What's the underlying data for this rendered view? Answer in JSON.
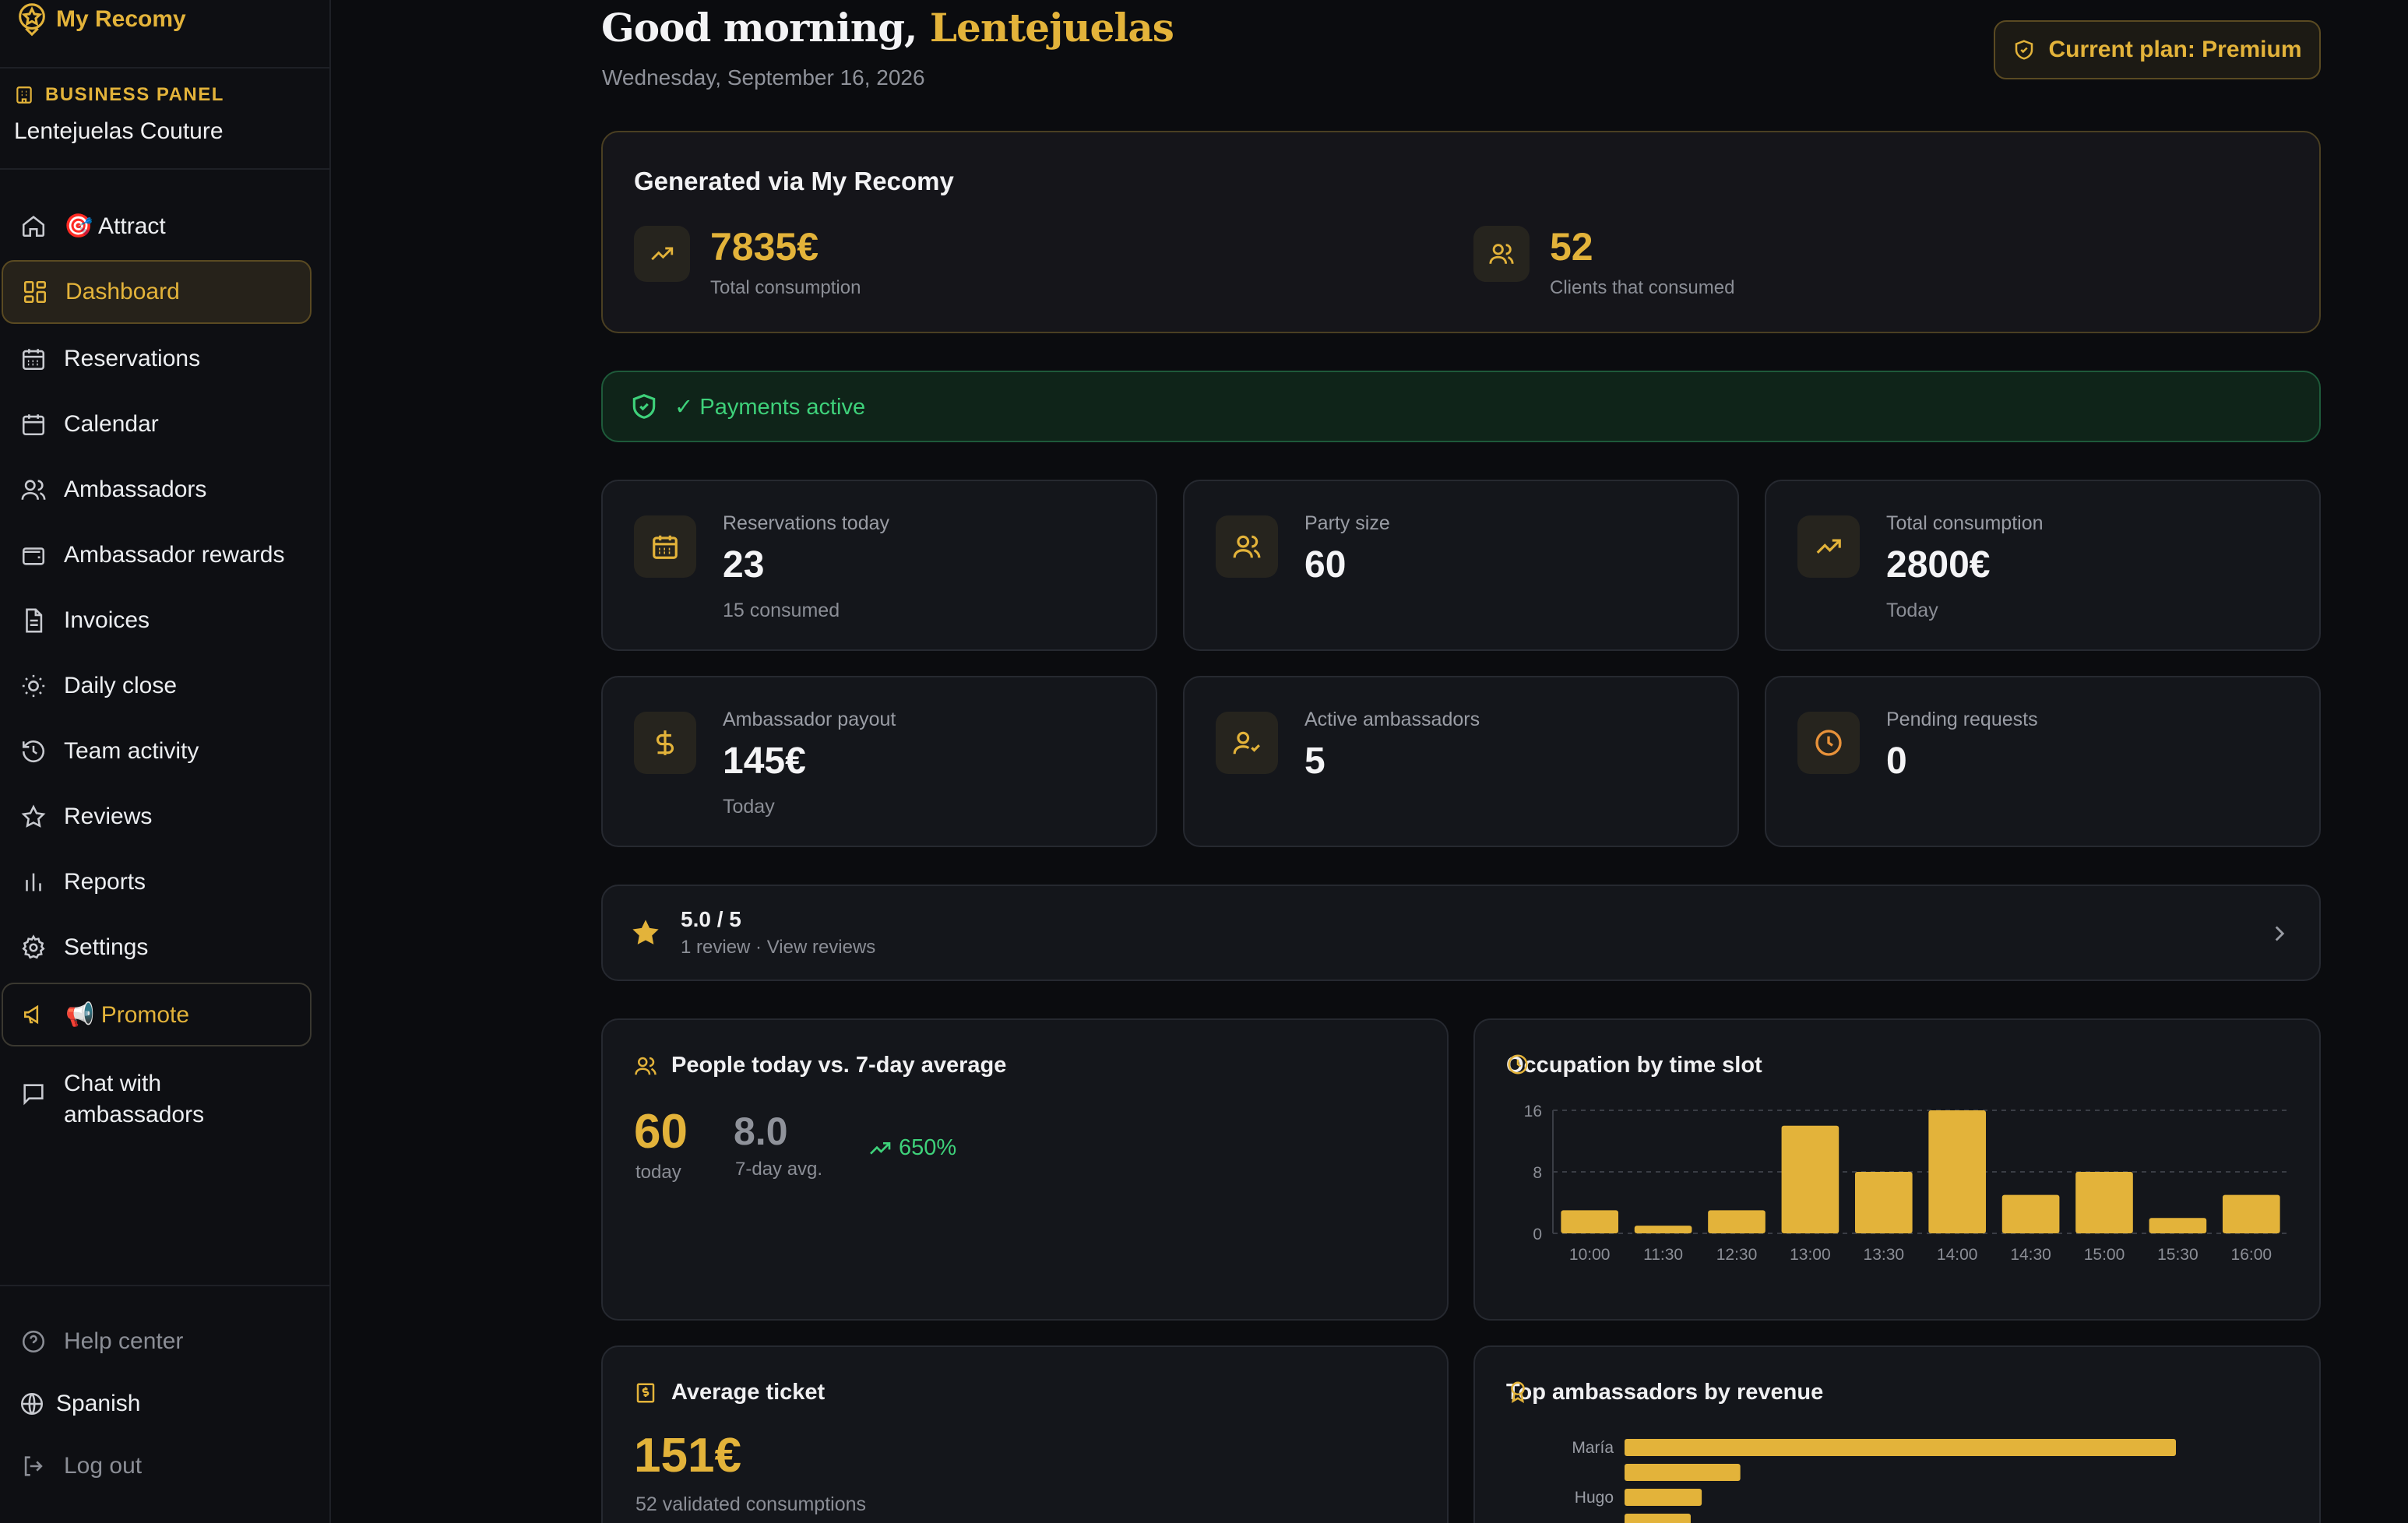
{
  "app": {
    "logo_text": "My Recomy"
  },
  "sidebar": {
    "business_label": "BUSINESS PANEL",
    "business_name": "Lentejuelas Couture",
    "items": [
      {
        "label": "🎯 Attract",
        "icon": "home-icon"
      },
      {
        "label": "Dashboard",
        "icon": "dashboard-icon"
      },
      {
        "label": "Reservations",
        "icon": "calendar-grid-icon"
      },
      {
        "label": "Calendar",
        "icon": "calendar-icon"
      },
      {
        "label": "Ambassadors",
        "icon": "users-icon"
      },
      {
        "label": "Ambassador rewards",
        "icon": "wallet-icon"
      },
      {
        "label": "Invoices",
        "icon": "document-icon"
      },
      {
        "label": "Daily close",
        "icon": "sun-icon"
      },
      {
        "label": "Team activity",
        "icon": "history-icon"
      },
      {
        "label": "Reviews",
        "icon": "star-icon"
      },
      {
        "label": "Reports",
        "icon": "bar-chart-icon"
      },
      {
        "label": "Settings",
        "icon": "gear-icon"
      },
      {
        "label": "📢 Promote",
        "icon": "megaphone-icon"
      },
      {
        "label": "Chat with ambassadors",
        "icon": "chat-icon"
      }
    ],
    "footer": {
      "help": "Help center",
      "language": "Spanish",
      "logout": "Log out"
    }
  },
  "header": {
    "greeting": "Good morning,",
    "name": "Lentejuelas",
    "date": "Wednesday, September 16, 2026",
    "plan": "Current plan: Premium"
  },
  "generated": {
    "title": "Generated via My Recomy",
    "consumption_value": "7835€",
    "consumption_label": "Total consumption",
    "clients_value": "52",
    "clients_label": "Clients that consumed"
  },
  "payments": {
    "label": "✓ Payments active"
  },
  "stats": [
    {
      "label": "Reservations today",
      "value": "23",
      "note": "15 consumed",
      "icon": "calendar-grid-icon"
    },
    {
      "label": "Party size",
      "value": "60",
      "note": "",
      "icon": "users-icon"
    },
    {
      "label": "Total consumption",
      "value": "2800€",
      "note": "Today",
      "icon": "trending-up-icon"
    },
    {
      "label": "Ambassador payout",
      "value": "145€",
      "note": "Today",
      "icon": "dollar-icon"
    },
    {
      "label": "Active ambassadors",
      "value": "5",
      "note": "",
      "icon": "user-check-icon"
    },
    {
      "label": "Pending requests",
      "value": "0",
      "note": "",
      "icon": "clock-icon"
    }
  ],
  "reviews": {
    "score": "5.0 / 5",
    "sub": "1 review · View reviews"
  },
  "people": {
    "title": "People today vs. 7-day average",
    "today": "60",
    "today_label": "today",
    "avg": "8.0",
    "avg_label": "7-day avg.",
    "trend": "650%"
  },
  "occupation": {
    "title": "Occupation by time slot"
  },
  "ticket": {
    "title": "Average ticket",
    "value": "151€",
    "sub": "52 validated consumptions"
  },
  "top_ambassadors": {
    "title": "Top ambassadors by revenue"
  },
  "colors": {
    "accent": "#e3b33a",
    "success": "#3ed17a",
    "background": "#0b0c0f",
    "card": "#14161b"
  },
  "chart_data": [
    {
      "type": "bar",
      "title": "Occupation by time slot",
      "categories": [
        "10:00",
        "11:30",
        "12:30",
        "13:00",
        "13:30",
        "14:00",
        "14:30",
        "15:00",
        "15:30",
        "16:00"
      ],
      "values": [
        3,
        1,
        3,
        14,
        8,
        16,
        5,
        8,
        2,
        5
      ],
      "yticks": [
        0,
        8,
        16
      ],
      "ylim": [
        0,
        16
      ],
      "grid": true
    },
    {
      "type": "bar",
      "orientation": "horizontal",
      "title": "Top ambassadors by revenue",
      "categories": [
        "María",
        "",
        "Hugo",
        ""
      ],
      "values": [
        100,
        21,
        14,
        12
      ]
    }
  ]
}
